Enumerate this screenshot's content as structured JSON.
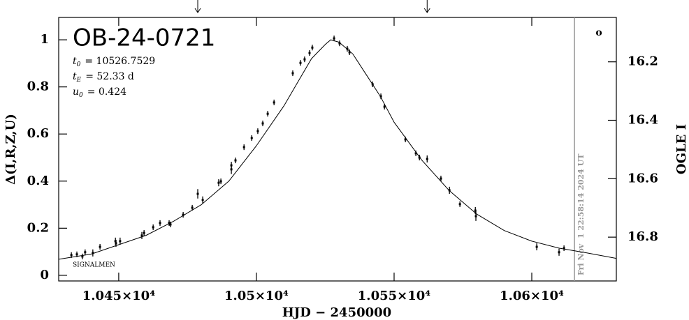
{
  "chart_data": {
    "type": "scatter",
    "title": "OB-24-0721",
    "annotations": [
      {
        "symbol": "t",
        "subscript": "0",
        "text": "= 10526.7529"
      },
      {
        "symbol": "t",
        "subscript": "E",
        "text": "= 52.33 d"
      },
      {
        "symbol": "u",
        "subscript": "0",
        "text": "= 0.424"
      }
    ],
    "footer_text": "SIGNALMEN",
    "corner_mark": "o",
    "date_text": "Fri Nov  1 22:58:14 2024 UT",
    "date_x": 10615.5,
    "arrows_x": [
      10478.7,
      10562.0
    ],
    "xlabel": "HJD − 2450000",
    "ylabel": "Δ(I,R,Z,U)",
    "y2label": "OGLE I",
    "xlim": [
      10428.2,
      10630.7
    ],
    "xticks": [
      {
        "value": 10450,
        "label": "1.045×10⁴"
      },
      {
        "value": 10500,
        "label": "1.05×10⁴"
      },
      {
        "value": 10550,
        "label": "1.055×10⁴"
      },
      {
        "value": 10600,
        "label": "1.06×10⁴"
      }
    ],
    "ylim": [
      -0.024,
      1.095
    ],
    "yticks": [
      0,
      0.2,
      0.4,
      0.6,
      0.8,
      1
    ],
    "y2lim": [
      16.95,
      16.048
    ],
    "y2ticks": [
      16.2,
      16.4,
      16.6,
      16.8
    ],
    "color": "#000000",
    "x": [
      10432.8,
      10434.8,
      10436.8,
      10437.8,
      10440.6,
      10443.2,
      10448.8,
      10449.0,
      10450.5,
      10458.4,
      10459.2,
      10462.5,
      10465.0,
      10468.3,
      10468.8,
      10473.4,
      10476.7,
      10478.7,
      10480.5,
      10486.3,
      10487.1,
      10490.9,
      10490.9,
      10492.4,
      10495.5,
      10498.3,
      10500.5,
      10502.3,
      10504.1,
      10506.4,
      10513.2,
      10516.0,
      10517.5,
      10519.3,
      10520.3,
      10528.2,
      10530.2,
      10533.0,
      10533.8,
      10542.2,
      10545.2,
      10546.5,
      10554.1,
      10557.9,
      10559.2,
      10562.0,
      10567.0,
      10570.1,
      10573.9,
      10579.5,
      10579.7,
      10601.8,
      10609.9,
      10611.7
    ],
    "values": [
      0.086,
      0.089,
      0.08,
      0.098,
      0.095,
      0.121,
      0.145,
      0.136,
      0.145,
      0.169,
      0.18,
      0.204,
      0.222,
      0.222,
      0.216,
      0.257,
      0.287,
      0.346,
      0.32,
      0.393,
      0.399,
      0.45,
      0.467,
      0.488,
      0.544,
      0.583,
      0.612,
      0.645,
      0.686,
      0.734,
      0.858,
      0.902,
      0.917,
      0.944,
      0.967,
      1.006,
      0.985,
      0.962,
      0.947,
      0.811,
      0.76,
      0.716,
      0.577,
      0.518,
      0.5,
      0.494,
      0.411,
      0.361,
      0.302,
      0.275,
      0.251,
      0.121,
      0.098,
      0.115
    ],
    "errors": [
      0.012,
      0.012,
      0.012,
      0.012,
      0.015,
      0.012,
      0.015,
      0.015,
      0.015,
      0.015,
      0.012,
      0.012,
      0.012,
      0.012,
      0.012,
      0.012,
      0.012,
      0.02,
      0.015,
      0.015,
      0.012,
      0.02,
      0.015,
      0.012,
      0.012,
      0.012,
      0.012,
      0.012,
      0.012,
      0.012,
      0.012,
      0.012,
      0.012,
      0.012,
      0.012,
      0.012,
      0.012,
      0.012,
      0.012,
      0.012,
      0.012,
      0.012,
      0.012,
      0.012,
      0.012,
      0.015,
      0.012,
      0.015,
      0.012,
      0.015,
      0.02,
      0.015,
      0.015,
      0.012
    ],
    "model": {
      "x": [
        10428.2,
        10440,
        10450,
        10460,
        10470,
        10480,
        10490,
        10500,
        10510,
        10515,
        10520,
        10525,
        10527,
        10530,
        10535,
        10540,
        10545,
        10550,
        10560,
        10570,
        10580,
        10590,
        10600,
        10610,
        10620,
        10630.7
      ],
      "values": [
        0.068,
        0.09,
        0.13,
        0.17,
        0.23,
        0.3,
        0.4,
        0.55,
        0.72,
        0.82,
        0.92,
        0.98,
        1.0,
        0.99,
        0.94,
        0.85,
        0.76,
        0.65,
        0.49,
        0.36,
        0.26,
        0.19,
        0.145,
        0.115,
        0.095,
        0.072
      ]
    }
  }
}
